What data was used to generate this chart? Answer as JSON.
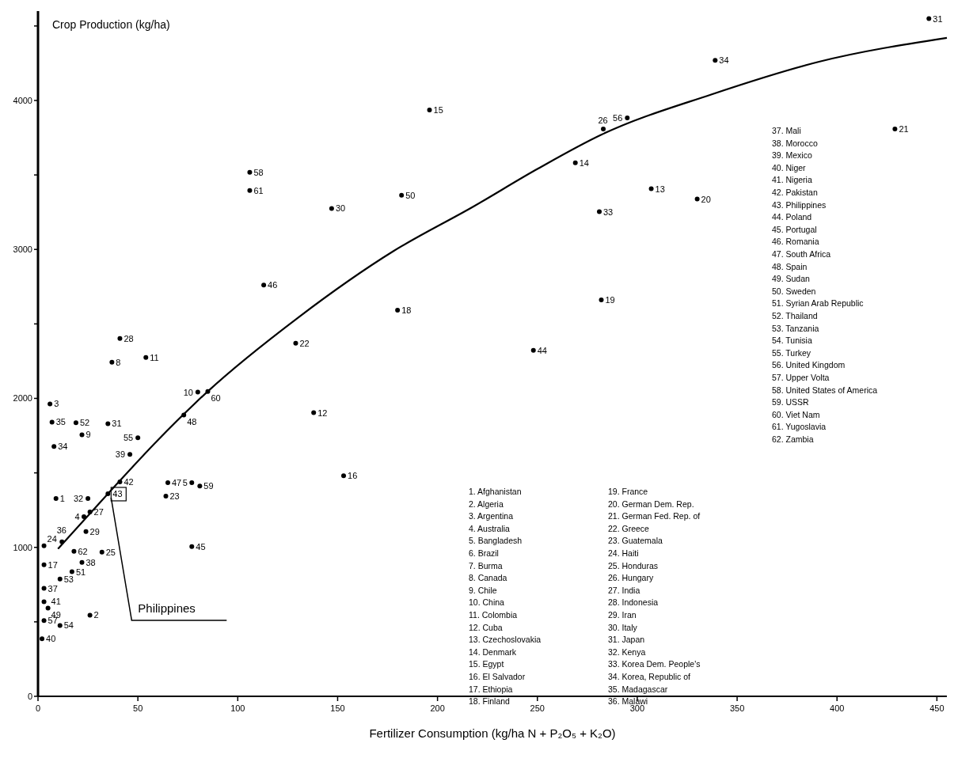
{
  "chart_data": {
    "type": "scatter",
    "xlabel": "Fertilizer Consumption (kg/ha N + P₂O₅ + K₂O)",
    "ylabel": "Crop Production (kg/ha)",
    "xlim": [
      0,
      455
    ],
    "ylim": [
      0,
      4600
    ],
    "xticks": [
      0,
      50,
      100,
      150,
      200,
      250,
      300,
      350,
      400,
      450
    ],
    "yticks": [
      0,
      {
        "value": 500,
        "label": null
      },
      1000,
      {
        "value": 1500,
        "label": null
      },
      2000,
      {
        "value": 2500,
        "label": null
      },
      3000,
      {
        "value": 3500,
        "label": null
      },
      4000,
      {
        "value": 4500,
        "label": null
      }
    ],
    "grid": false,
    "marker": "circle",
    "series": [
      {
        "type": "scatter",
        "color": "#000000",
        "x": [
          41,
          37,
          54,
          80,
          85,
          6,
          7,
          19,
          35,
          22,
          73,
          50,
          8,
          46,
          41,
          35,
          65,
          77,
          81,
          64,
          9,
          25,
          23,
          26,
          24,
          12,
          3,
          18,
          32,
          77,
          3,
          22,
          11,
          17,
          3,
          3,
          5,
          26,
          3,
          11,
          2,
          106,
          106,
          147,
          182,
          196,
          113,
          180,
          129,
          138,
          153,
          248,
          282,
          281,
          269,
          283,
          295,
          307,
          330,
          339,
          429,
          446
        ],
        "values": [
          2402,
          2243,
          2275,
          2042,
          2047,
          1963,
          1841,
          1836,
          1830,
          1756,
          1889,
          1735,
          1677,
          1624,
          1439,
          1360,
          1434,
          1434,
          1412,
          1344,
          1328,
          1328,
          1206,
          1238,
          1106,
          1037,
          1010,
          973,
          968,
          1005,
          883,
          899,
          788,
          836,
          725,
          635,
          592,
          545,
          508,
          476,
          386,
          3518,
          3396,
          3275,
          3364,
          3936,
          2761,
          2592,
          2370,
          1904,
          1481,
          2322,
          2661,
          3253,
          3581,
          3809,
          3883,
          3407,
          3338,
          4269,
          3809,
          4549
        ]
      },
      {
        "type": "line",
        "color": "#000000",
        "line_style": "solid",
        "marker": "none",
        "x": [
          10,
          35,
          60,
          85,
          130,
          178,
          218,
          250,
          282,
          337,
          391,
          455
        ],
        "values": [
          990,
          1360,
          1720,
          2047,
          2540,
          2989,
          3288,
          3540,
          3770,
          4040,
          4260,
          4420
        ]
      }
    ],
    "annotations": [
      {
        "text": "Philippines",
        "x": 35,
        "y": 1360
      },
      {
        "text": "28",
        "x": 41,
        "y": 2402
      },
      {
        "text": "8",
        "x": 37,
        "y": 2243
      },
      {
        "text": "11",
        "x": 54,
        "y": 2275
      },
      {
        "text": "10",
        "x": 80,
        "y": 2042
      },
      {
        "text": "60",
        "x": 85,
        "y": 2047
      },
      {
        "text": "3",
        "x": 6,
        "y": 1963
      },
      {
        "text": "35",
        "x": 7,
        "y": 1841
      },
      {
        "text": "52",
        "x": 19,
        "y": 1836
      },
      {
        "text": "31",
        "x": 35,
        "y": 1830
      },
      {
        "text": "9",
        "x": 22,
        "y": 1756
      },
      {
        "text": "48",
        "x": 73,
        "y": 1889
      },
      {
        "text": "55",
        "x": 50,
        "y": 1735
      },
      {
        "text": "34",
        "x": 8,
        "y": 1677
      },
      {
        "text": "39",
        "x": 46,
        "y": 1624
      },
      {
        "text": "42",
        "x": 41,
        "y": 1439
      },
      {
        "text": "43",
        "x": 35,
        "y": 1360
      },
      {
        "text": "47",
        "x": 65,
        "y": 1434
      },
      {
        "text": "5",
        "x": 77,
        "y": 1434
      },
      {
        "text": "59",
        "x": 81,
        "y": 1412
      },
      {
        "text": "23",
        "x": 64,
        "y": 1344
      },
      {
        "text": "1",
        "x": 9,
        "y": 1328
      },
      {
        "text": "32",
        "x": 25,
        "y": 1328
      },
      {
        "text": "4",
        "x": 23,
        "y": 1206
      },
      {
        "text": "27",
        "x": 26,
        "y": 1238
      },
      {
        "text": "29",
        "x": 24,
        "y": 1106
      },
      {
        "text": "36",
        "x": 12,
        "y": 1037
      },
      {
        "text": "24",
        "x": 3,
        "y": 1010
      },
      {
        "text": "62",
        "x": 18,
        "y": 973
      },
      {
        "text": "25",
        "x": 32,
        "y": 968
      },
      {
        "text": "45",
        "x": 77,
        "y": 1005
      },
      {
        "text": "17",
        "x": 3,
        "y": 883
      },
      {
        "text": "38",
        "x": 22,
        "y": 899
      },
      {
        "text": "53",
        "x": 11,
        "y": 788
      },
      {
        "text": "51",
        "x": 17,
        "y": 836
      },
      {
        "text": "37",
        "x": 3,
        "y": 725
      },
      {
        "text": "41",
        "x": 3,
        "y": 635
      },
      {
        "text": "49",
        "x": 5,
        "y": 592
      },
      {
        "text": "2",
        "x": 26,
        "y": 545
      },
      {
        "text": "57",
        "x": 3,
        "y": 508
      },
      {
        "text": "54",
        "x": 11,
        "y": 476
      },
      {
        "text": "40",
        "x": 2,
        "y": 386
      },
      {
        "text": "58",
        "x": 106,
        "y": 3518
      },
      {
        "text": "61",
        "x": 106,
        "y": 3396
      },
      {
        "text": "30",
        "x": 147,
        "y": 3275
      },
      {
        "text": "50",
        "x": 182,
        "y": 3364
      },
      {
        "text": "15",
        "x": 196,
        "y": 3936
      },
      {
        "text": "46",
        "x": 113,
        "y": 2761
      },
      {
        "text": "18",
        "x": 180,
        "y": 2592
      },
      {
        "text": "22",
        "x": 129,
        "y": 2370
      },
      {
        "text": "12",
        "x": 138,
        "y": 1904
      },
      {
        "text": "16",
        "x": 153,
        "y": 1481
      },
      {
        "text": "44",
        "x": 248,
        "y": 2322
      },
      {
        "text": "19",
        "x": 282,
        "y": 2661
      },
      {
        "text": "33",
        "x": 281,
        "y": 3253
      },
      {
        "text": "14",
        "x": 269,
        "y": 3581
      },
      {
        "text": "26",
        "x": 283,
        "y": 3809
      },
      {
        "text": "56",
        "x": 295,
        "y": 3883
      },
      {
        "text": "13",
        "x": 307,
        "y": 3407
      },
      {
        "text": "20",
        "x": 330,
        "y": 3338
      },
      {
        "text": "34",
        "x": 339,
        "y": 4269
      },
      {
        "text": "21",
        "x": 429,
        "y": 3809
      },
      {
        "text": "31",
        "x": 446,
        "y": 4549
      },
      "1.  Afghanistan",
      "2.  Algeria",
      "3.  Argentina",
      "4.  Australia",
      "5.  Bangladesh",
      "6.  Brazil",
      "7.  Burma",
      "8.  Canada",
      "9.  Chile",
      "10.  China",
      "11.  Colombia",
      "12.  Cuba",
      "13.  Czechoslovakia",
      "14.  Denmark",
      "15.  Egypt",
      "16.  El Salvador",
      "17.  Ethiopia",
      "18.  Finland",
      "19.  France",
      "20.  German Dem. Rep.",
      "21.  German Fed. Rep. of",
      "22.  Greece",
      "23.  Guatemala",
      "24.  Haiti",
      "25.  Honduras",
      "26.  Hungary",
      "27.  India",
      "28.  Indonesia",
      "29.  Iran",
      "30.  Italy",
      "31.  Japan",
      "32.  Kenya",
      "33.  Korea Dem. People's",
      "34.  Korea, Republic of",
      "35.  Madagascar",
      "36.  Malawi",
      "37.  Mali",
      "38.  Morocco",
      "39.  Mexico",
      "40.  Niger",
      "41.  Nigeria",
      "42.  Pakistan",
      "43.  Philippines",
      "44.  Poland",
      "45.  Portugal",
      "46.  Romania",
      "47.  South Africa",
      "48.  Spain",
      "49.  Sudan",
      "50.  Sweden",
      "51.  Syrian Arab Republic",
      "52.  Thailand",
      "53.  Tanzania",
      "54.  Tunisia",
      "55.  Turkey",
      "56.  United Kingdom",
      "57.  Upper Volta",
      "58.  United States of America",
      "59.  USSR",
      "60.  Viet Nam",
      "61.  Yugoslavia",
      "62.  Zambia"
    ]
  }
}
